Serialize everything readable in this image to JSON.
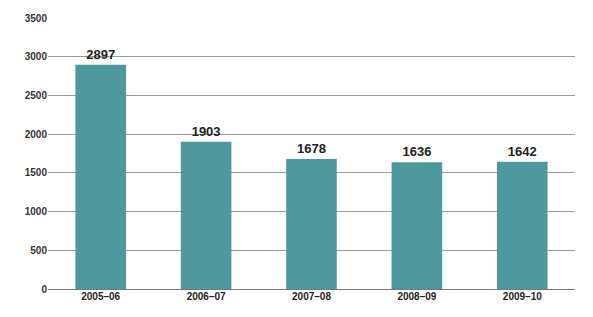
{
  "chart_data": {
    "type": "bar",
    "categories": [
      "2005–06",
      "2006–07",
      "2007–08",
      "2008–09",
      "2009–10"
    ],
    "values": [
      2897,
      1903,
      1678,
      1636,
      1642
    ],
    "color": "#4e999e",
    "ylim": [
      0,
      3500
    ],
    "yticks": [
      0,
      500,
      1000,
      1500,
      2000,
      2500,
      3000,
      3500
    ],
    "grid": true,
    "data_labels": true
  }
}
